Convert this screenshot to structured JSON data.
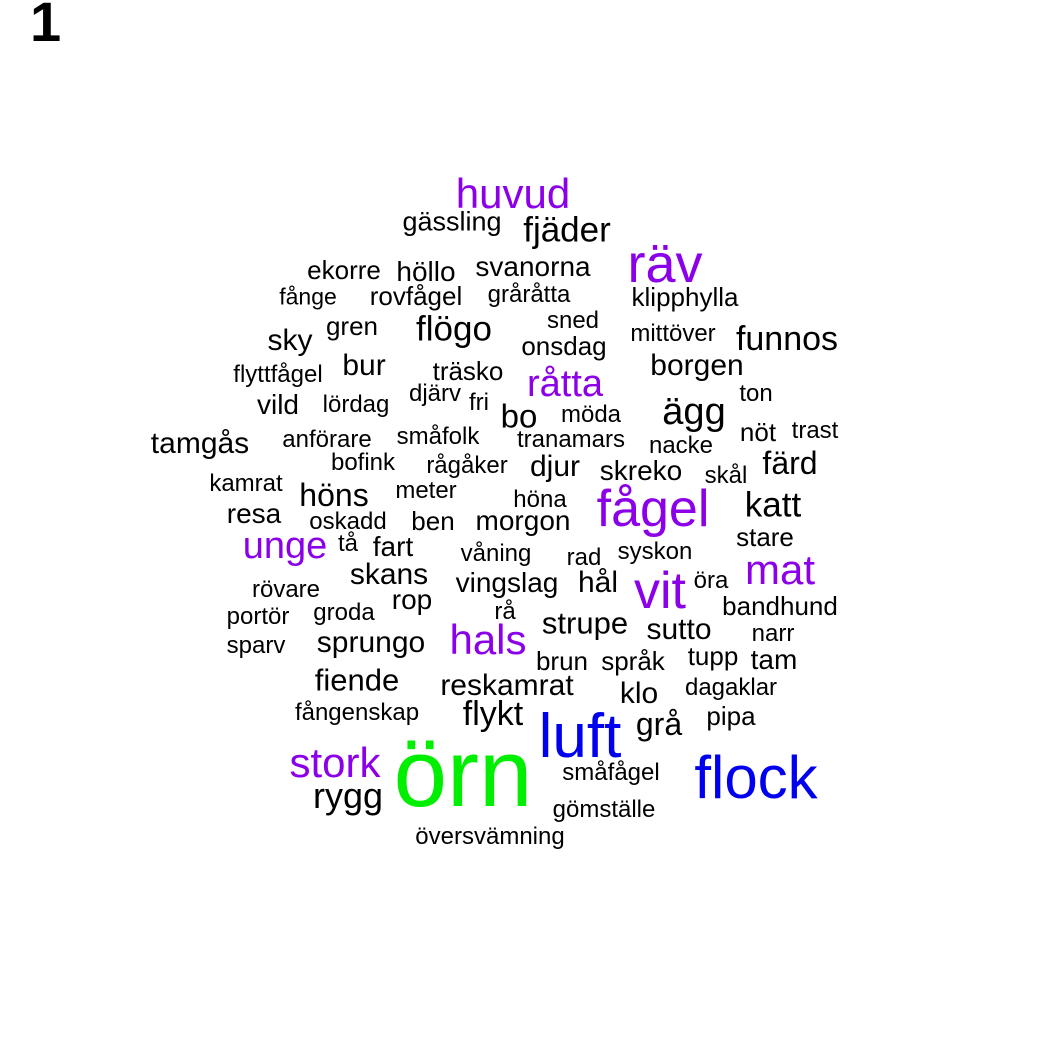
{
  "panel_label": "1",
  "colors": {
    "default": "#000000",
    "purple": "#8B00E8",
    "blue": "#0000EE",
    "green": "#00EE00"
  },
  "words": [
    {
      "text": "huvud",
      "color": "purple"
    },
    {
      "text": "gässling",
      "color": "default"
    },
    {
      "text": "fjäder",
      "color": "default"
    },
    {
      "text": "räv",
      "color": "purple"
    },
    {
      "text": "ekorre",
      "color": "default"
    },
    {
      "text": "höllo",
      "color": "default"
    },
    {
      "text": "svanorna",
      "color": "default"
    },
    {
      "text": "fånge",
      "color": "default"
    },
    {
      "text": "rovfågel",
      "color": "default"
    },
    {
      "text": "gråråtta",
      "color": "default"
    },
    {
      "text": "klipphylla",
      "color": "default"
    },
    {
      "text": "gren",
      "color": "default"
    },
    {
      "text": "flögo",
      "color": "default"
    },
    {
      "text": "sned",
      "color": "default"
    },
    {
      "text": "sky",
      "color": "default"
    },
    {
      "text": "onsdag",
      "color": "default"
    },
    {
      "text": "mittöver",
      "color": "default"
    },
    {
      "text": "funnos",
      "color": "default"
    },
    {
      "text": "bur",
      "color": "default"
    },
    {
      "text": "träsko",
      "color": "default"
    },
    {
      "text": "borgen",
      "color": "default"
    },
    {
      "text": "flyttfågel",
      "color": "default"
    },
    {
      "text": "råtta",
      "color": "purple"
    },
    {
      "text": "ton",
      "color": "default"
    },
    {
      "text": "djärv",
      "color": "default"
    },
    {
      "text": "vild",
      "color": "default"
    },
    {
      "text": "lördag",
      "color": "default"
    },
    {
      "text": "fri",
      "color": "default"
    },
    {
      "text": "bo",
      "color": "default"
    },
    {
      "text": "möda",
      "color": "default"
    },
    {
      "text": "ägg",
      "color": "default"
    },
    {
      "text": "tamgås",
      "color": "default"
    },
    {
      "text": "anförare",
      "color": "default"
    },
    {
      "text": "småfolk",
      "color": "default"
    },
    {
      "text": "tranamars",
      "color": "default"
    },
    {
      "text": "nacke",
      "color": "default"
    },
    {
      "text": "nöt",
      "color": "default"
    },
    {
      "text": "trast",
      "color": "default"
    },
    {
      "text": "bofink",
      "color": "default"
    },
    {
      "text": "rågåker",
      "color": "default"
    },
    {
      "text": "djur",
      "color": "default"
    },
    {
      "text": "skreko",
      "color": "default"
    },
    {
      "text": "skål",
      "color": "default"
    },
    {
      "text": "färd",
      "color": "default"
    },
    {
      "text": "kamrat",
      "color": "default"
    },
    {
      "text": "meter",
      "color": "default"
    },
    {
      "text": "höns",
      "color": "default"
    },
    {
      "text": "höna",
      "color": "default"
    },
    {
      "text": "fågel",
      "color": "purple"
    },
    {
      "text": "katt",
      "color": "default"
    },
    {
      "text": "resa",
      "color": "default"
    },
    {
      "text": "oskadd",
      "color": "default"
    },
    {
      "text": "ben",
      "color": "default"
    },
    {
      "text": "morgon",
      "color": "default"
    },
    {
      "text": "stare",
      "color": "default"
    },
    {
      "text": "unge",
      "color": "purple"
    },
    {
      "text": "tå",
      "color": "default"
    },
    {
      "text": "fart",
      "color": "default"
    },
    {
      "text": "våning",
      "color": "default"
    },
    {
      "text": "rad",
      "color": "default"
    },
    {
      "text": "syskon",
      "color": "default"
    },
    {
      "text": "mat",
      "color": "purple"
    },
    {
      "text": "skans",
      "color": "default"
    },
    {
      "text": "vit",
      "color": "purple"
    },
    {
      "text": "rövare",
      "color": "default"
    },
    {
      "text": "vingslag",
      "color": "default"
    },
    {
      "text": "hål",
      "color": "default"
    },
    {
      "text": "öra",
      "color": "default"
    },
    {
      "text": "rop",
      "color": "default"
    },
    {
      "text": "bandhund",
      "color": "default"
    },
    {
      "text": "portör",
      "color": "default"
    },
    {
      "text": "groda",
      "color": "default"
    },
    {
      "text": "rå",
      "color": "default"
    },
    {
      "text": "strupe",
      "color": "default"
    },
    {
      "text": "sutto",
      "color": "default"
    },
    {
      "text": "narr",
      "color": "default"
    },
    {
      "text": "sparv",
      "color": "default"
    },
    {
      "text": "sprungo",
      "color": "default"
    },
    {
      "text": "hals",
      "color": "purple"
    },
    {
      "text": "tupp",
      "color": "default"
    },
    {
      "text": "brun",
      "color": "default"
    },
    {
      "text": "språk",
      "color": "default"
    },
    {
      "text": "tam",
      "color": "default"
    },
    {
      "text": "fiende",
      "color": "default"
    },
    {
      "text": "reskamrat",
      "color": "default"
    },
    {
      "text": "dagaklar",
      "color": "default"
    },
    {
      "text": "klo",
      "color": "default"
    },
    {
      "text": "fångenskap",
      "color": "default"
    },
    {
      "text": "flykt",
      "color": "default"
    },
    {
      "text": "pipa",
      "color": "default"
    },
    {
      "text": "luft",
      "color": "blue"
    },
    {
      "text": "grå",
      "color": "default"
    },
    {
      "text": "stork",
      "color": "purple"
    },
    {
      "text": "örn",
      "color": "green"
    },
    {
      "text": "flock",
      "color": "blue"
    },
    {
      "text": "småfågel",
      "color": "default"
    },
    {
      "text": "rygg",
      "color": "default"
    },
    {
      "text": "gömställe",
      "color": "default"
    },
    {
      "text": "översvämning",
      "color": "default"
    }
  ]
}
